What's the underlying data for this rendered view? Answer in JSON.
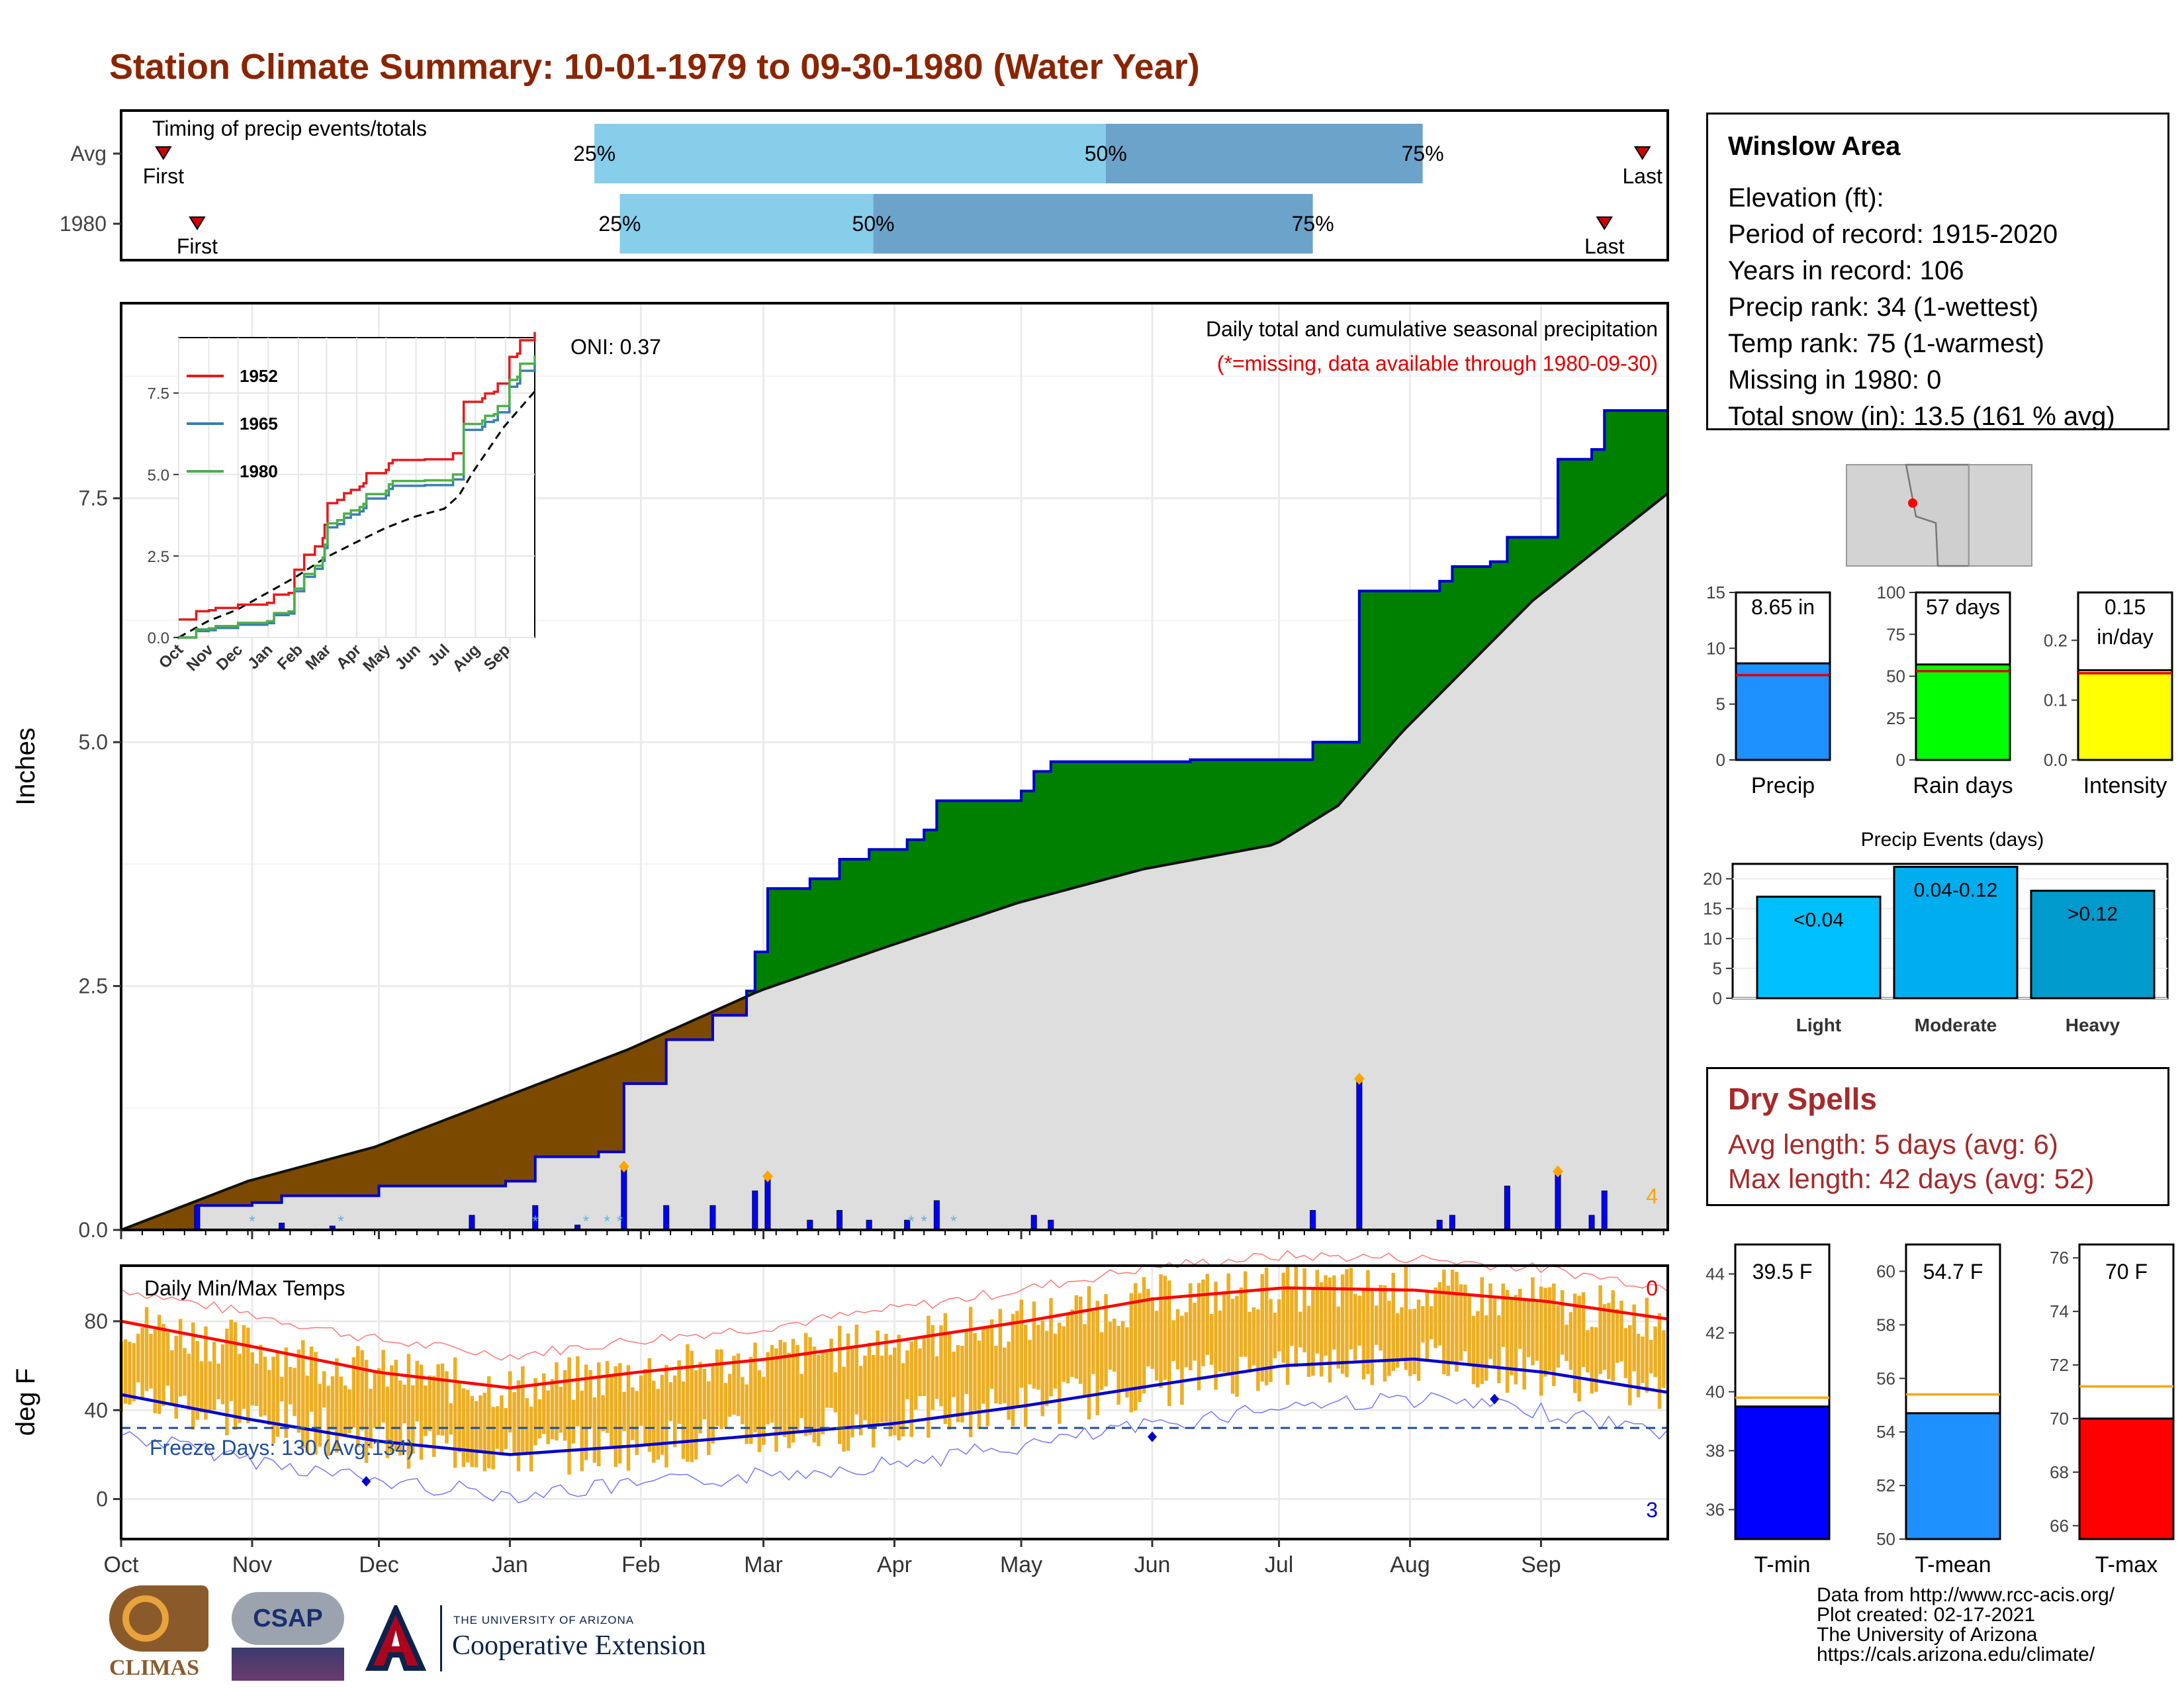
{
  "title": "Station Climate Summary: 10-01-1979 to 09-30-1980 (Water Year)",
  "colors": {
    "title": "#8B2500",
    "below_avg": "#7B4A00",
    "above_avg": "#008000",
    "normal": "#DEDEDE",
    "obs_line": "#0000CC",
    "bars": "#0000FF",
    "light": "#87CEEB",
    "dark": "#6BA3CB",
    "temps": "#EDAE24",
    "tmax": "#FF0000",
    "tmin": "#0000CC",
    "dry": "#A52A2A"
  },
  "timing": {
    "label": "Timing of precip events/totals",
    "rows": [
      {
        "name": "Avg",
        "first": "First",
        "last": "Last",
        "p25": "25%",
        "p50": "50%",
        "p75": "75%",
        "first_day": 10,
        "last_day": 360,
        "q25": 112,
        "q50": 233,
        "q75": 308
      },
      {
        "name": "1980",
        "first": "First",
        "last": "Last",
        "p25": "25%",
        "p50": "50%",
        "p75": "75%",
        "first_day": 18,
        "last_day": 351,
        "q25": 118,
        "q50": 178,
        "q75": 282
      }
    ]
  },
  "precip_panel": {
    "ylabel": "Inches",
    "yticks": [
      "0.0",
      "2.5",
      "5.0",
      "7.5"
    ],
    "oni": "ONI: 0.37",
    "note1": "Daily total and cumulative seasonal precipitation",
    "note2": "(*=missing, data available through 1980-09-30)",
    "count_label": "4"
  },
  "inset": {
    "yticks": [
      "0.0",
      "2.5",
      "5.0",
      "7.5"
    ],
    "xticks": [
      "Oct",
      "Nov",
      "Dec",
      "Jan",
      "Feb",
      "Mar",
      "Apr",
      "May",
      "Jun",
      "Jul",
      "Aug",
      "Sep"
    ],
    "legend": [
      {
        "name": "1952",
        "color": "#E41A1C"
      },
      {
        "name": "1965",
        "color": "#377EB8"
      },
      {
        "name": "1980",
        "color": "#4DAF4A"
      }
    ]
  },
  "temp_panel": {
    "ylabel": "deg F",
    "label": "Daily Min/Max Temps",
    "yticks": [
      "0",
      "40",
      "80"
    ],
    "freeze": "Freeze Days: 130 (Avg:134)",
    "top_count": "0",
    "bottom_count": "3"
  },
  "months": [
    "Oct",
    "Nov",
    "Dec",
    "Jan",
    "Feb",
    "Mar",
    "Apr",
    "May",
    "Jun",
    "Jul",
    "Aug",
    "Sep"
  ],
  "info": {
    "station": "Winslow Area",
    "lines": [
      "Elevation (ft):",
      "Period of record: 1915-2020",
      "Years in record: 106",
      "Precip rank: 34 (1-wettest)",
      "Temp rank: 75 (1-warmest)",
      "Missing in 1980: 0",
      "Total snow (in): 13.5 (161 % avg)"
    ]
  },
  "mini_bars": [
    {
      "name": "Precip",
      "value_label": "8.65 in",
      "value": 8.65,
      "avg": 7.6,
      "ymax": 15,
      "ticks": [
        "0",
        "5",
        "10",
        "15"
      ],
      "tickvals": [
        0,
        5,
        10,
        15
      ],
      "color": "#1E90FF"
    },
    {
      "name": "Rain days",
      "value_label": "57 days",
      "value": 57,
      "avg": 53,
      "ymax": 100,
      "ticks": [
        "0",
        "25",
        "50",
        "75",
        "100"
      ],
      "tickvals": [
        0,
        25,
        50,
        75,
        100
      ],
      "color": "#00FF00"
    },
    {
      "name": "Intensity",
      "value_label": "0.15\nin/day",
      "value": 0.15,
      "avg": 0.145,
      "ymax": 0.28,
      "ticks": [
        "0.0",
        "0.1",
        "0.2"
      ],
      "tickvals": [
        0,
        0.1,
        0.2
      ],
      "color": "#FFFF00"
    }
  ],
  "events": {
    "title": "Precip Events (days)",
    "ticks": [
      "0",
      "5",
      "10",
      "15",
      "20"
    ],
    "bars": [
      {
        "name": "Light",
        "label": "<0.04",
        "value": 17,
        "color": "#00BFFF"
      },
      {
        "name": "Moderate",
        "label": "0.04-0.12",
        "value": 22,
        "color": "#00AEEF"
      },
      {
        "name": "Heavy",
        "label": ">0.12",
        "value": 18,
        "color": "#009ACD"
      }
    ]
  },
  "dry": {
    "title": "Dry Spells",
    "avg": "Avg length: 5 days (avg: 6)",
    "max": "Max length: 42 days (avg: 52)"
  },
  "temp_bars": [
    {
      "name": "T-min",
      "value_label": "39.5 F",
      "value": 39.5,
      "avg": 39.8,
      "ymin": 35,
      "ymax": 45,
      "ticks": [
        "36",
        "38",
        "40",
        "42",
        "44"
      ],
      "tickvals": [
        36,
        38,
        40,
        42,
        44
      ],
      "color": "#0000FF"
    },
    {
      "name": "T-mean",
      "value_label": "54.7 F",
      "value": 54.7,
      "avg": 55.4,
      "ymin": 50,
      "ymax": 61,
      "ticks": [
        "50",
        "52",
        "54",
        "56",
        "58",
        "60"
      ],
      "tickvals": [
        50,
        52,
        54,
        56,
        58,
        60
      ],
      "color": "#1E90FF"
    },
    {
      "name": "T-max",
      "value_label": "70 F",
      "value": 70.0,
      "avg": 71.2,
      "ymin": 65.5,
      "ymax": 76.5,
      "ticks": [
        "66",
        "68",
        "70",
        "72",
        "74",
        "76"
      ],
      "tickvals": [
        66,
        68,
        70,
        72,
        74,
        76
      ],
      "color": "#FF0000"
    }
  ],
  "footer": {
    "climas": "CLIMAS",
    "csap": "CSAP",
    "ua_small": "THE UNIVERSITY OF ARIZONA",
    "ua_big": "Cooperative Extension",
    "credits": [
      "Data from http://www.rcc-acis.org/",
      "Plot created: 02-17-2021",
      "The University of Arizona",
      "https://cals.arizona.edu/climate/"
    ]
  },
  "chart_data": {
    "type": "area",
    "title": "Station Climate Summary: 10-01-1979 to 09-30-1980 (Water Year)",
    "ylabel": "Inches",
    "ylim": [
      0,
      9.5
    ],
    "cumulative_1980": [
      {
        "day": 0,
        "v": 0.0
      },
      {
        "day": 18,
        "v": 0.25
      },
      {
        "day": 31,
        "v": 0.28
      },
      {
        "day": 38,
        "v": 0.35
      },
      {
        "day": 61,
        "v": 0.45
      },
      {
        "day": 91,
        "v": 0.5
      },
      {
        "day": 98,
        "v": 0.75
      },
      {
        "day": 113,
        "v": 0.8
      },
      {
        "day": 119,
        "v": 1.5
      },
      {
        "day": 129,
        "v": 1.95
      },
      {
        "day": 140,
        "v": 2.2
      },
      {
        "day": 148,
        "v": 2.45
      },
      {
        "day": 150,
        "v": 2.85
      },
      {
        "day": 153,
        "v": 3.5
      },
      {
        "day": 163,
        "v": 3.6
      },
      {
        "day": 170,
        "v": 3.8
      },
      {
        "day": 177,
        "v": 3.9
      },
      {
        "day": 186,
        "v": 4.0
      },
      {
        "day": 190,
        "v": 4.1
      },
      {
        "day": 193,
        "v": 4.4
      },
      {
        "day": 213,
        "v": 4.5
      },
      {
        "day": 216,
        "v": 4.7
      },
      {
        "day": 220,
        "v": 4.8
      },
      {
        "day": 253,
        "v": 4.82
      },
      {
        "day": 282,
        "v": 5.0
      },
      {
        "day": 293,
        "v": 6.55
      },
      {
        "day": 312,
        "v": 6.65
      },
      {
        "day": 315,
        "v": 6.8
      },
      {
        "day": 324,
        "v": 6.85
      },
      {
        "day": 328,
        "v": 7.1
      },
      {
        "day": 340,
        "v": 7.9
      },
      {
        "day": 348,
        "v": 8.0
      },
      {
        "day": 351,
        "v": 8.4
      },
      {
        "day": 366,
        "v": 8.65
      }
    ],
    "normal": [
      {
        "day": 0,
        "v": 0.0
      },
      {
        "day": 30,
        "v": 0.5
      },
      {
        "day": 60,
        "v": 0.85
      },
      {
        "day": 90,
        "v": 1.35
      },
      {
        "day": 120,
        "v": 1.85
      },
      {
        "day": 151,
        "v": 2.45
      },
      {
        "day": 181,
        "v": 2.9
      },
      {
        "day": 212,
        "v": 3.35
      },
      {
        "day": 242,
        "v": 3.7
      },
      {
        "day": 273,
        "v": 3.95
      },
      {
        "day": 288,
        "v": 4.35
      },
      {
        "day": 303,
        "v": 5.1
      },
      {
        "day": 334,
        "v": 6.45
      },
      {
        "day": 366,
        "v": 7.55
      }
    ],
    "daily_precip": [
      {
        "day": 18,
        "v": 0.25
      },
      {
        "day": 38,
        "v": 0.07
      },
      {
        "day": 50,
        "v": 0.04
      },
      {
        "day": 83,
        "v": 0.15
      },
      {
        "day": 98,
        "v": 0.25
      },
      {
        "day": 108,
        "v": 0.05
      },
      {
        "day": 119,
        "v": 0.65
      },
      {
        "day": 129,
        "v": 0.25
      },
      {
        "day": 140,
        "v": 0.25
      },
      {
        "day": 150,
        "v": 0.4
      },
      {
        "day": 153,
        "v": 0.55
      },
      {
        "day": 163,
        "v": 0.1
      },
      {
        "day": 170,
        "v": 0.2
      },
      {
        "day": 177,
        "v": 0.1
      },
      {
        "day": 186,
        "v": 0.1
      },
      {
        "day": 193,
        "v": 0.3
      },
      {
        "day": 216,
        "v": 0.15
      },
      {
        "day": 220,
        "v": 0.1
      },
      {
        "day": 282,
        "v": 0.2
      },
      {
        "day": 293,
        "v": 1.55
      },
      {
        "day": 312,
        "v": 0.1
      },
      {
        "day": 315,
        "v": 0.15
      },
      {
        "day": 328,
        "v": 0.45
      },
      {
        "day": 340,
        "v": 0.6
      },
      {
        "day": 348,
        "v": 0.15
      },
      {
        "day": 351,
        "v": 0.4
      }
    ],
    "temperature": {
      "ylabel": "deg F",
      "ylim": [
        -18,
        105
      ],
      "avg_max": [
        [
          0,
          80
        ],
        [
          30,
          69
        ],
        [
          61,
          57
        ],
        [
          92,
          50
        ],
        [
          122,
          57
        ],
        [
          153,
          63
        ],
        [
          183,
          71
        ],
        [
          214,
          80
        ],
        [
          244,
          90
        ],
        [
          275,
          95
        ],
        [
          306,
          94
        ],
        [
          337,
          89
        ],
        [
          366,
          81
        ]
      ],
      "avg_min": [
        [
          0,
          47
        ],
        [
          30,
          36
        ],
        [
          61,
          26
        ],
        [
          92,
          20
        ],
        [
          122,
          24
        ],
        [
          153,
          29
        ],
        [
          183,
          34
        ],
        [
          214,
          42
        ],
        [
          244,
          51
        ],
        [
          275,
          60
        ],
        [
          306,
          63
        ],
        [
          337,
          57
        ],
        [
          366,
          48
        ]
      ],
      "freeze_line": 32
    }
  }
}
